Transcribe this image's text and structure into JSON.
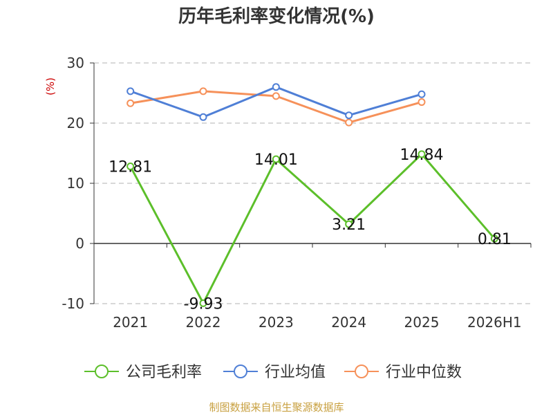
{
  "title": "历年毛利率变化情况(%)",
  "source": "制图数据来自恒生聚源数据库",
  "chart_data": {
    "type": "line",
    "categories": [
      "2021",
      "2022",
      "2023",
      "2024",
      "2025",
      "2026H1"
    ],
    "ylabel": "(%)",
    "ylim": [
      -10,
      30
    ],
    "yticks": [
      -10,
      0,
      10,
      20,
      30
    ],
    "grid": true,
    "legend_position": "bottom",
    "series": [
      {
        "name": "公司毛利率",
        "color": "#5cbf2a",
        "values": [
          12.81,
          -9.93,
          14.01,
          3.21,
          14.84,
          0.81
        ],
        "labels": [
          "12.81",
          "-9.93",
          "14.01",
          "3.21",
          "14.84",
          "0.81"
        ]
      },
      {
        "name": "行业均值",
        "color": "#4f7fd6",
        "values": [
          25.3,
          21.0,
          26.0,
          21.3,
          24.8,
          null
        ]
      },
      {
        "name": "行业中位数",
        "color": "#f6915a",
        "values": [
          23.3,
          25.3,
          24.5,
          20.1,
          23.5,
          null
        ]
      }
    ]
  }
}
